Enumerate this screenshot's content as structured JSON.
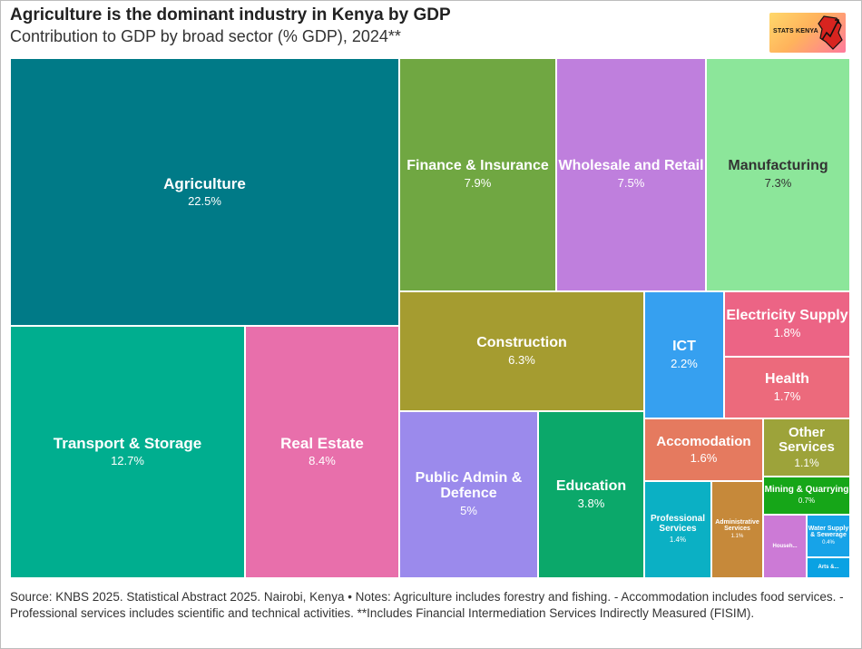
{
  "header": {
    "title": "Agriculture is the dominant industry in Kenya by GDP",
    "subtitle": "Contribution to GDP by broad sector (% GDP), 2024**"
  },
  "logo": {
    "text": "STATS KENYA"
  },
  "footer": {
    "note": "Source: KNBS 2025. Statistical Abstract 2025. Nairobi, Kenya • Notes: Agriculture includes forestry and fishing. - Accommodation includes food services. - Professional services includes scientific and technical activities. **Includes Financial Intermediation Services Indirectly Measured (FISIM)."
  },
  "chart_data": {
    "type": "treemap",
    "title": "Agriculture is the dominant industry in Kenya by GDP",
    "subtitle": "Contribution to GDP by broad sector (% GDP), 2024**",
    "unit": "% GDP",
    "items": [
      {
        "name": "Agriculture",
        "value": 22.5,
        "value_label": "22.5%",
        "color": "#007a87"
      },
      {
        "name": "Transport & Storage",
        "value": 12.7,
        "value_label": "12.7%",
        "color": "#00ae8f"
      },
      {
        "name": "Real Estate",
        "value": 8.4,
        "value_label": "8.4%",
        "color": "#e86fab"
      },
      {
        "name": "Finance & Insurance",
        "value": 7.9,
        "value_label": "7.9%",
        "color": "#70a742"
      },
      {
        "name": "Wholesale and Retail",
        "value": 7.5,
        "value_label": "7.5%",
        "color": "#bf7fdd"
      },
      {
        "name": "Manufacturing",
        "value": 7.3,
        "value_label": "7.3%",
        "color": "#8ce69a"
      },
      {
        "name": "Construction",
        "value": 6.3,
        "value_label": "6.3%",
        "color": "#a59c30"
      },
      {
        "name": "Public Admin & Defence",
        "value": 5,
        "value_label": "5%",
        "color": "#9b8aec"
      },
      {
        "name": "Education",
        "value": 3.8,
        "value_label": "3.8%",
        "color": "#0ba86a"
      },
      {
        "name": "ICT",
        "value": 2.2,
        "value_label": "2.2%",
        "color": "#36a0f0"
      },
      {
        "name": "Electricity Supply",
        "value": 1.8,
        "value_label": "1.8%",
        "color": "#ec6485"
      },
      {
        "name": "Health",
        "value": 1.7,
        "value_label": "1.7%",
        "color": "#ec6a7c"
      },
      {
        "name": "Accomodation",
        "value": 1.6,
        "value_label": "1.6%",
        "color": "#e57a5f"
      },
      {
        "name": "Other Services",
        "value": 1.1,
        "value_label": "1.1%",
        "color": "#9da33a"
      },
      {
        "name": "Professional Services",
        "value": 1.4,
        "value_label": "1.4%",
        "color": "#0bb0c4"
      },
      {
        "name": "Administrative Services",
        "value": 1.1,
        "value_label": "1.1%",
        "color": "#c6893a"
      },
      {
        "name": "Mining & Quarrying",
        "value": 0.7,
        "value_label": "0.7%",
        "color": "#16a618"
      },
      {
        "name": "Househ...",
        "value": 0.5,
        "value_label": "",
        "color": "#cc7ad6"
      },
      {
        "name": "Water Supply & Sewerage",
        "value": 0.4,
        "value_label": "0.4%",
        "color": "#17a3e8"
      },
      {
        "name": "Arts &...",
        "value": 0.2,
        "value_label": "",
        "color": "#0aa2e3"
      }
    ]
  }
}
